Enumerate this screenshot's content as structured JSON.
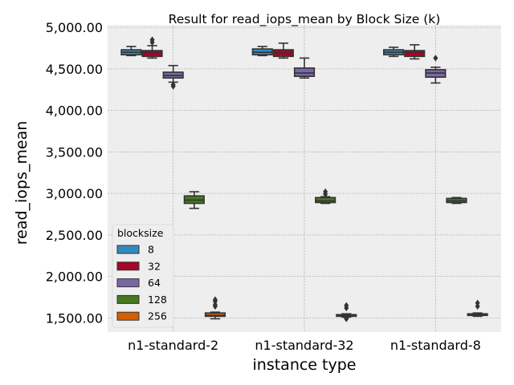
{
  "chart_data": {
    "type": "box",
    "title": "Result for read_iops_mean by Block Size (k)",
    "xlabel": "instance type",
    "ylabel": "read_iops_mean",
    "categories": [
      "n1-standard-2",
      "n1-standard-32",
      "n1-standard-8"
    ],
    "ylim": [
      1330,
      5030
    ],
    "yticks": [
      1500,
      2000,
      2500,
      3000,
      3500,
      4000,
      4500,
      5000
    ],
    "ytick_labels": [
      "1,500.00",
      "2,000.00",
      "2,500.00",
      "3,000.00",
      "3,500.00",
      "4,000.00",
      "4,500.00",
      "5,000.00"
    ],
    "grid": true,
    "legend": {
      "title": "blocksize",
      "placement": "lower-left"
    },
    "series": [
      {
        "name": "8",
        "color": "#348abd",
        "boxes": [
          {
            "whislo": 4660,
            "q1": 4670,
            "med": 4700,
            "q3": 4730,
            "whishi": 4770,
            "fliers": []
          },
          {
            "whislo": 4660,
            "q1": 4670,
            "med": 4700,
            "q3": 4740,
            "whishi": 4770,
            "fliers": []
          },
          {
            "whislo": 4650,
            "q1": 4670,
            "med": 4700,
            "q3": 4730,
            "whishi": 4760,
            "fliers": []
          }
        ]
      },
      {
        "name": "32",
        "color": "#a60628",
        "boxes": [
          {
            "whislo": 4630,
            "q1": 4650,
            "med": 4690,
            "q3": 4720,
            "whishi": 4780,
            "fliers": [
              4820,
              4850
            ]
          },
          {
            "whislo": 4630,
            "q1": 4650,
            "med": 4690,
            "q3": 4730,
            "whishi": 4810,
            "fliers": []
          },
          {
            "whislo": 4620,
            "q1": 4650,
            "med": 4690,
            "q3": 4720,
            "whishi": 4790,
            "fliers": []
          }
        ]
      },
      {
        "name": "64",
        "color": "#7a68a6",
        "boxes": [
          {
            "whislo": 4340,
            "q1": 4390,
            "med": 4420,
            "q3": 4460,
            "whishi": 4540,
            "fliers": [
              4290,
              4310
            ]
          },
          {
            "whislo": 4390,
            "q1": 4410,
            "med": 4450,
            "q3": 4510,
            "whishi": 4630,
            "fliers": []
          },
          {
            "whislo": 4330,
            "q1": 4400,
            "med": 4450,
            "q3": 4490,
            "whishi": 4520,
            "fliers": [
              4630
            ]
          }
        ]
      },
      {
        "name": "128",
        "color": "#467821",
        "boxes": [
          {
            "whislo": 2820,
            "q1": 2880,
            "med": 2920,
            "q3": 2970,
            "whishi": 3020,
            "fliers": []
          },
          {
            "whislo": 2880,
            "q1": 2890,
            "med": 2910,
            "q3": 2950,
            "whishi": 2960,
            "fliers": [
              2990,
              3020
            ]
          },
          {
            "whislo": 2880,
            "q1": 2890,
            "med": 2910,
            "q3": 2940,
            "whishi": 2950,
            "fliers": []
          }
        ]
      },
      {
        "name": "256",
        "color": "#d55e00",
        "boxes": [
          {
            "whislo": 1490,
            "q1": 1520,
            "med": 1530,
            "q3": 1560,
            "whishi": 1570,
            "fliers": [
              1640,
              1660,
              1700,
              1720
            ]
          },
          {
            "whislo": 1510,
            "q1": 1520,
            "med": 1530,
            "q3": 1540,
            "whishi": 1550,
            "fliers": [
              1490,
              1500,
              1620,
              1650
            ]
          },
          {
            "whislo": 1520,
            "q1": 1530,
            "med": 1540,
            "q3": 1550,
            "whishi": 1560,
            "fliers": [
              1640,
              1680
            ]
          }
        ]
      }
    ]
  }
}
